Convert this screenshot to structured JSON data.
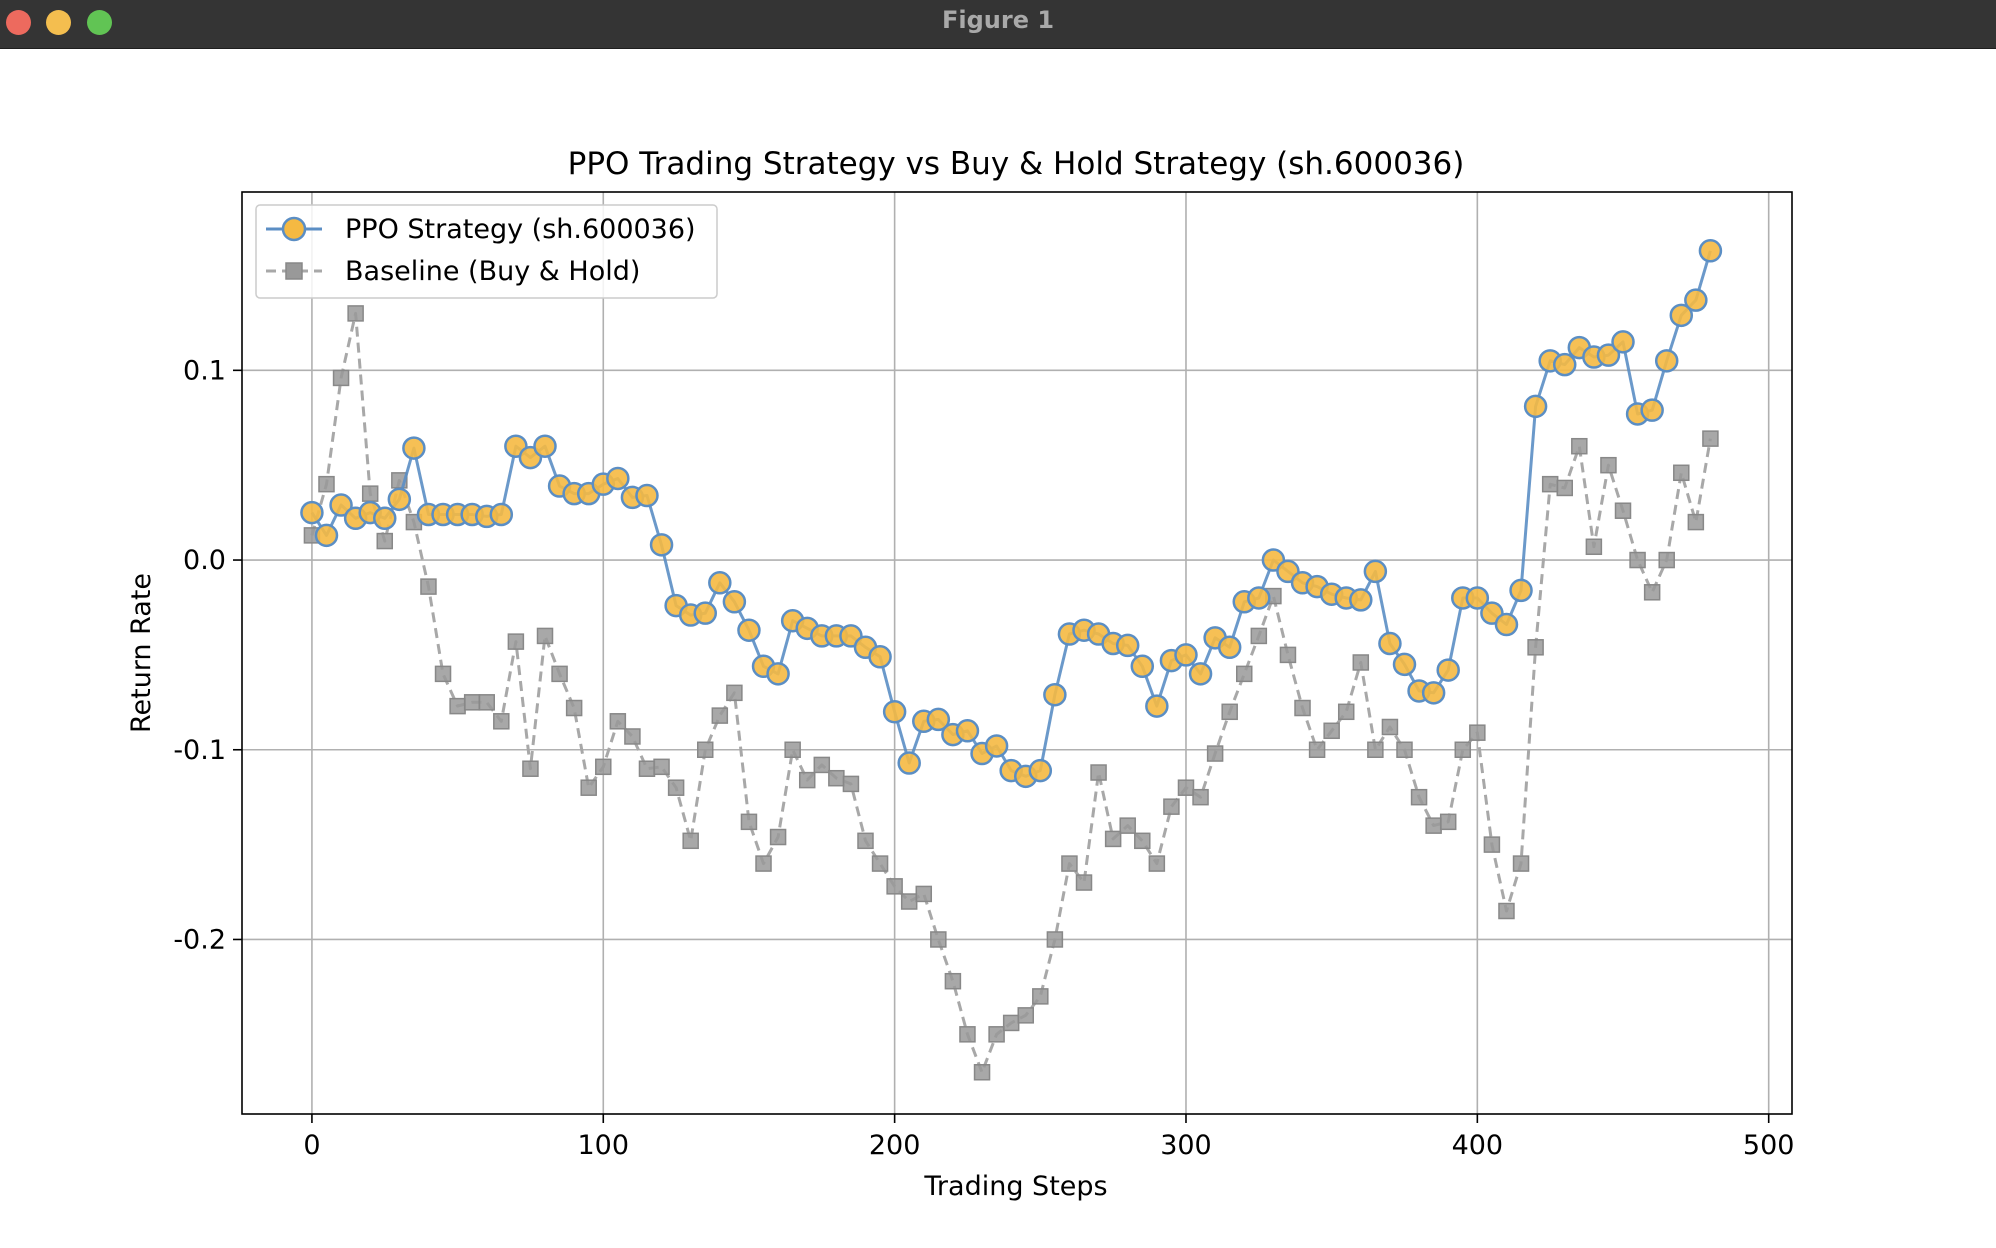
{
  "window": {
    "title": "Figure 1"
  },
  "chart_data": {
    "type": "line",
    "title": "PPO Trading Strategy vs Buy & Hold Strategy (sh.600036)",
    "xlabel": "Trading Steps",
    "ylabel": "Return Rate",
    "xlim": [
      -24,
      508
    ],
    "ylim": [
      -0.292,
      0.194
    ],
    "xticks": [
      0,
      100,
      200,
      300,
      400,
      500
    ],
    "yticks": [
      -0.2,
      -0.1,
      0.0,
      0.1
    ],
    "ytick_labels": [
      "-0.2",
      "-0.1",
      "0.0",
      "0.1"
    ],
    "grid": true,
    "legend_position": "top-left",
    "series": [
      {
        "name": "PPO Strategy (sh.600036)",
        "color": "#5b8ec4",
        "marker_face": "#f5b942",
        "marker": "circle",
        "style": "solid",
        "x": [
          0,
          5,
          10,
          15,
          20,
          25,
          30,
          35,
          40,
          45,
          50,
          55,
          60,
          65,
          70,
          75,
          80,
          85,
          90,
          95,
          100,
          105,
          110,
          115,
          120,
          125,
          130,
          135,
          140,
          145,
          150,
          155,
          160,
          165,
          170,
          175,
          180,
          185,
          190,
          195,
          200,
          205,
          210,
          215,
          220,
          225,
          230,
          235,
          240,
          245,
          250,
          255,
          260,
          265,
          270,
          275,
          280,
          285,
          290,
          295,
          300,
          305,
          310,
          315,
          320,
          325,
          330,
          335,
          340,
          345,
          350,
          355,
          360,
          365,
          370,
          375,
          380,
          385,
          390,
          395,
          400,
          405,
          410,
          415,
          420,
          425,
          430,
          435,
          440,
          445,
          450,
          455,
          460,
          465,
          470,
          475,
          480
        ],
        "values": [
          0.025,
          0.013,
          0.029,
          0.022,
          0.025,
          0.022,
          0.032,
          0.059,
          0.024,
          0.024,
          0.024,
          0.024,
          0.023,
          0.024,
          0.06,
          0.054,
          0.06,
          0.039,
          0.035,
          0.035,
          0.04,
          0.043,
          0.033,
          0.034,
          0.008,
          -0.024,
          -0.029,
          -0.028,
          -0.012,
          -0.022,
          -0.037,
          -0.056,
          -0.06,
          -0.032,
          -0.036,
          -0.04,
          -0.04,
          -0.04,
          -0.046,
          -0.051,
          -0.08,
          -0.107,
          -0.085,
          -0.084,
          -0.092,
          -0.09,
          -0.102,
          -0.098,
          -0.111,
          -0.114,
          -0.111,
          -0.071,
          -0.039,
          -0.037,
          -0.039,
          -0.044,
          -0.045,
          -0.056,
          -0.077,
          -0.053,
          -0.05,
          -0.06,
          -0.041,
          -0.046,
          -0.022,
          -0.02,
          0.0,
          -0.006,
          -0.012,
          -0.014,
          -0.018,
          -0.02,
          -0.021,
          -0.006,
          -0.044,
          -0.055,
          -0.069,
          -0.07,
          -0.058,
          -0.02,
          -0.02,
          -0.028,
          -0.034,
          -0.016,
          0.081,
          0.105,
          0.103,
          0.112,
          0.107,
          0.108,
          0.115,
          0.077,
          0.079,
          0.105,
          0.129,
          0.137,
          0.163
        ]
      },
      {
        "name": "Baseline (Buy & Hold)",
        "color": "#a8a8a8",
        "marker_face": "#999999",
        "marker": "square",
        "style": "dashed",
        "x": [
          0,
          5,
          10,
          15,
          20,
          25,
          30,
          35,
          40,
          45,
          50,
          55,
          60,
          65,
          70,
          75,
          80,
          85,
          90,
          95,
          100,
          105,
          110,
          115,
          120,
          125,
          130,
          135,
          140,
          145,
          150,
          155,
          160,
          165,
          170,
          175,
          180,
          185,
          190,
          195,
          200,
          205,
          210,
          215,
          220,
          225,
          230,
          235,
          240,
          245,
          250,
          255,
          260,
          265,
          270,
          275,
          280,
          285,
          290,
          295,
          300,
          305,
          310,
          315,
          320,
          325,
          330,
          335,
          340,
          345,
          350,
          355,
          360,
          365,
          370,
          375,
          380,
          385,
          390,
          395,
          400,
          405,
          410,
          415,
          420,
          425,
          430,
          435,
          440,
          445,
          450,
          455,
          460,
          465,
          470,
          475,
          480
        ],
        "values": [
          0.013,
          0.04,
          0.096,
          0.13,
          0.035,
          0.01,
          0.042,
          0.02,
          -0.014,
          -0.06,
          -0.077,
          -0.075,
          -0.075,
          -0.085,
          -0.043,
          -0.11,
          -0.04,
          -0.06,
          -0.078,
          -0.12,
          -0.109,
          -0.085,
          -0.093,
          -0.11,
          -0.109,
          -0.12,
          -0.148,
          -0.1,
          -0.082,
          -0.07,
          -0.138,
          -0.16,
          -0.146,
          -0.1,
          -0.116,
          -0.108,
          -0.115,
          -0.118,
          -0.148,
          -0.16,
          -0.172,
          -0.18,
          -0.176,
          -0.2,
          -0.222,
          -0.25,
          -0.27,
          -0.25,
          -0.244,
          -0.24,
          -0.23,
          -0.2,
          -0.16,
          -0.17,
          -0.112,
          -0.147,
          -0.14,
          -0.148,
          -0.16,
          -0.13,
          -0.12,
          -0.125,
          -0.102,
          -0.08,
          -0.06,
          -0.04,
          -0.019,
          -0.05,
          -0.078,
          -0.1,
          -0.09,
          -0.08,
          -0.054,
          -0.1,
          -0.088,
          -0.1,
          -0.125,
          -0.14,
          -0.138,
          -0.1,
          -0.091,
          -0.15,
          -0.185,
          -0.16,
          -0.046,
          0.04,
          0.038,
          0.06,
          0.007,
          0.05,
          0.026,
          0.0,
          -0.017,
          0.0,
          0.046,
          0.02,
          0.064
        ]
      }
    ]
  }
}
